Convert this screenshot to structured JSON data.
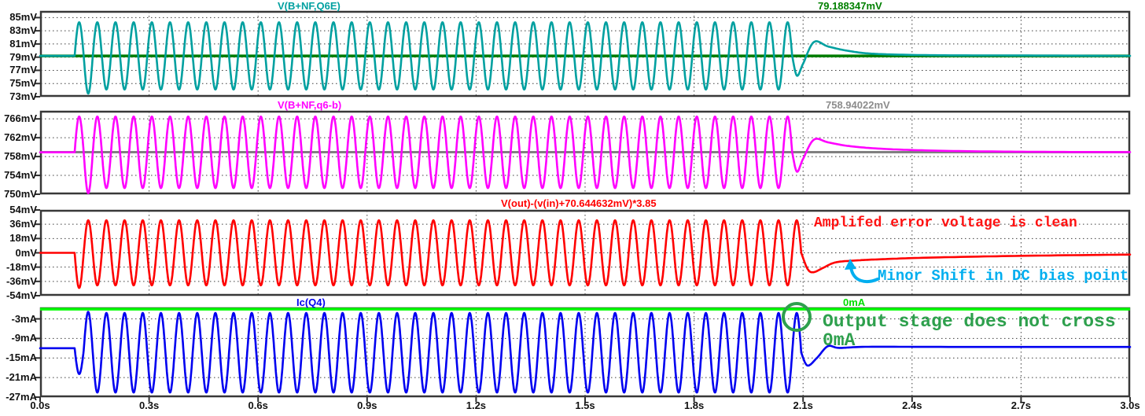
{
  "window": {
    "background": "#ffffff"
  },
  "chart_data": {
    "type": "line",
    "grid": true,
    "x_axis": {
      "unit": "s",
      "min": 0,
      "max": 3,
      "tick_values": [
        0,
        0.3,
        0.6,
        0.9,
        1.2,
        1.5,
        1.8,
        2.1,
        2.4,
        2.7,
        3.0
      ],
      "tick_labels": [
        "0.0s",
        "0.3s",
        "0.6s",
        "0.9s",
        "1.2s",
        "1.5s",
        "1.8s",
        "2.1s",
        "2.4s",
        "2.7s",
        "3.0s"
      ]
    },
    "osc": {
      "t_start": 0.095,
      "freq_hz": 20,
      "t_end": 2.1
    },
    "panes": [
      {
        "title": "V(B+NF,Q6E)",
        "color": "#00A0A0",
        "unit": "mV",
        "ymin": 73,
        "ymax": 86,
        "y_ticks": [
          {
            "v": 85,
            "label": "85mV"
          },
          {
            "v": 83,
            "label": "83mV"
          },
          {
            "v": 81,
            "label": "81mV"
          },
          {
            "v": 79,
            "label": "79mV"
          },
          {
            "v": 77,
            "label": "77mV"
          },
          {
            "v": 75,
            "label": "75mV"
          },
          {
            "v": 73,
            "label": "73mV"
          }
        ],
        "ref_line": {
          "value": 79.188347,
          "label": "79.188347mV",
          "color": "#007C00",
          "label_color": "#008000",
          "width": 3.5
        },
        "signal": {
          "flat": 79.19,
          "baseline": 79.19,
          "amplitude": 5.1,
          "polarity": 1,
          "first_dip_scale": 1.12,
          "settle": [
            [
              2.07,
              79.19
            ],
            [
              2.083,
              76.2
            ],
            [
              2.1,
              78.0
            ],
            [
              2.13,
              81.3
            ],
            [
              2.17,
              80.6
            ],
            [
              2.23,
              79.9
            ],
            [
              2.3,
              79.5
            ],
            [
              2.45,
              79.3
            ],
            [
              2.7,
              79.25
            ],
            [
              3.0,
              79.2
            ]
          ]
        }
      },
      {
        "title": "V(B+NF,q6-b)",
        "color": "#FF00FF",
        "unit": "mV",
        "ymin": 750,
        "ymax": 767.7,
        "y_ticks": [
          {
            "v": 766,
            "label": "766mV"
          },
          {
            "v": 762,
            "label": "762mV"
          },
          {
            "v": 758,
            "label": "758mV"
          },
          {
            "v": 754,
            "label": "754mV"
          },
          {
            "v": 750,
            "label": "750mV"
          }
        ],
        "ref_line": {
          "value": 758.94022,
          "label": "758.94022mV",
          "color": "#808080",
          "label_color": "#8C8C8C",
          "width": 3
        },
        "signal": {
          "flat": 758.9,
          "baseline": 758.9,
          "amplitude": 7.6,
          "polarity": 1,
          "first_dip_scale": 1.14,
          "settle": [
            [
              2.07,
              758.9
            ],
            [
              2.083,
              754.8
            ],
            [
              2.1,
              757.5
            ],
            [
              2.13,
              761.6
            ],
            [
              2.17,
              761.0
            ],
            [
              2.23,
              760.2
            ],
            [
              2.33,
              759.6
            ],
            [
              2.5,
              759.2
            ],
            [
              2.75,
              759.0
            ],
            [
              3.0,
              758.95
            ]
          ]
        }
      },
      {
        "title": "V(out)-(v(in)+70.644632mV)*3.85",
        "color": "#FF0000",
        "unit": "mV",
        "ymin": -54,
        "ymax": 54,
        "y_ticks": [
          {
            "v": 54,
            "label": "54mV"
          },
          {
            "v": 36,
            "label": "36mV"
          },
          {
            "v": 18,
            "label": "18mV"
          },
          {
            "v": 0,
            "label": "0mV"
          },
          {
            "v": -18,
            "label": "-18mV"
          },
          {
            "v": -36,
            "label": "-36mV"
          },
          {
            "v": -54,
            "label": "-54mV"
          }
        ],
        "signal": {
          "flat": 0,
          "baseline": 0,
          "amplitude": 41,
          "polarity": -1,
          "first_dip_scale": 1.08,
          "settle": [
            [
              2.095,
              0
            ],
            [
              2.112,
              -20
            ],
            [
              2.128,
              -24.5
            ],
            [
              2.155,
              -19
            ],
            [
              2.19,
              -12
            ],
            [
              2.25,
              -9.5
            ],
            [
              2.32,
              -8
            ],
            [
              2.45,
              -6
            ],
            [
              2.7,
              -3.8
            ],
            [
              3.0,
              -2.2
            ]
          ]
        }
      },
      {
        "title": "Ic(Q4)",
        "color": "#0000F0",
        "unit": "mA",
        "ymin": -27,
        "ymax": 0.5,
        "y_ticks": [
          {
            "v": -3,
            "label": "-3mA"
          },
          {
            "v": -9,
            "label": "-9mA"
          },
          {
            "v": -15,
            "label": "-15mA"
          },
          {
            "v": -21,
            "label": "-21mA"
          },
          {
            "v": -27,
            "label": "-27mA"
          }
        ],
        "ref_line": {
          "value": 0,
          "label": "0mA",
          "color": "#00FF00",
          "label_color": "#00DC00",
          "width": 3.5
        },
        "signal": {
          "flat": -12,
          "baseline": -13.4,
          "amplitude": 12.2,
          "polarity": -1,
          "first_dip_scale": 0.62,
          "settle": [
            [
              2.095,
              -13.4
            ],
            [
              2.112,
              -17.3
            ],
            [
              2.138,
              -15.0
            ],
            [
              2.168,
              -11.4
            ],
            [
              2.2,
              -11.9
            ],
            [
              2.28,
              -11.55
            ],
            [
              2.5,
              -11.6
            ],
            [
              3.0,
              -11.6
            ]
          ]
        }
      }
    ]
  },
  "annotations": {
    "error_clean": {
      "text": "Amplifed error voltage is clean",
      "color": "#FF1212"
    },
    "dc_shift": {
      "text": "Minor Shift in DC bias point",
      "color": "#00AEEF"
    },
    "no_cross_line1": {
      "text": "Output stage does not cross",
      "color": "#2EA04D"
    },
    "no_cross_line2": {
      "text": "0mA",
      "color": "#2EA04D"
    },
    "circle_color": "#2EA04D",
    "arrow_color": "#00AEEF"
  }
}
